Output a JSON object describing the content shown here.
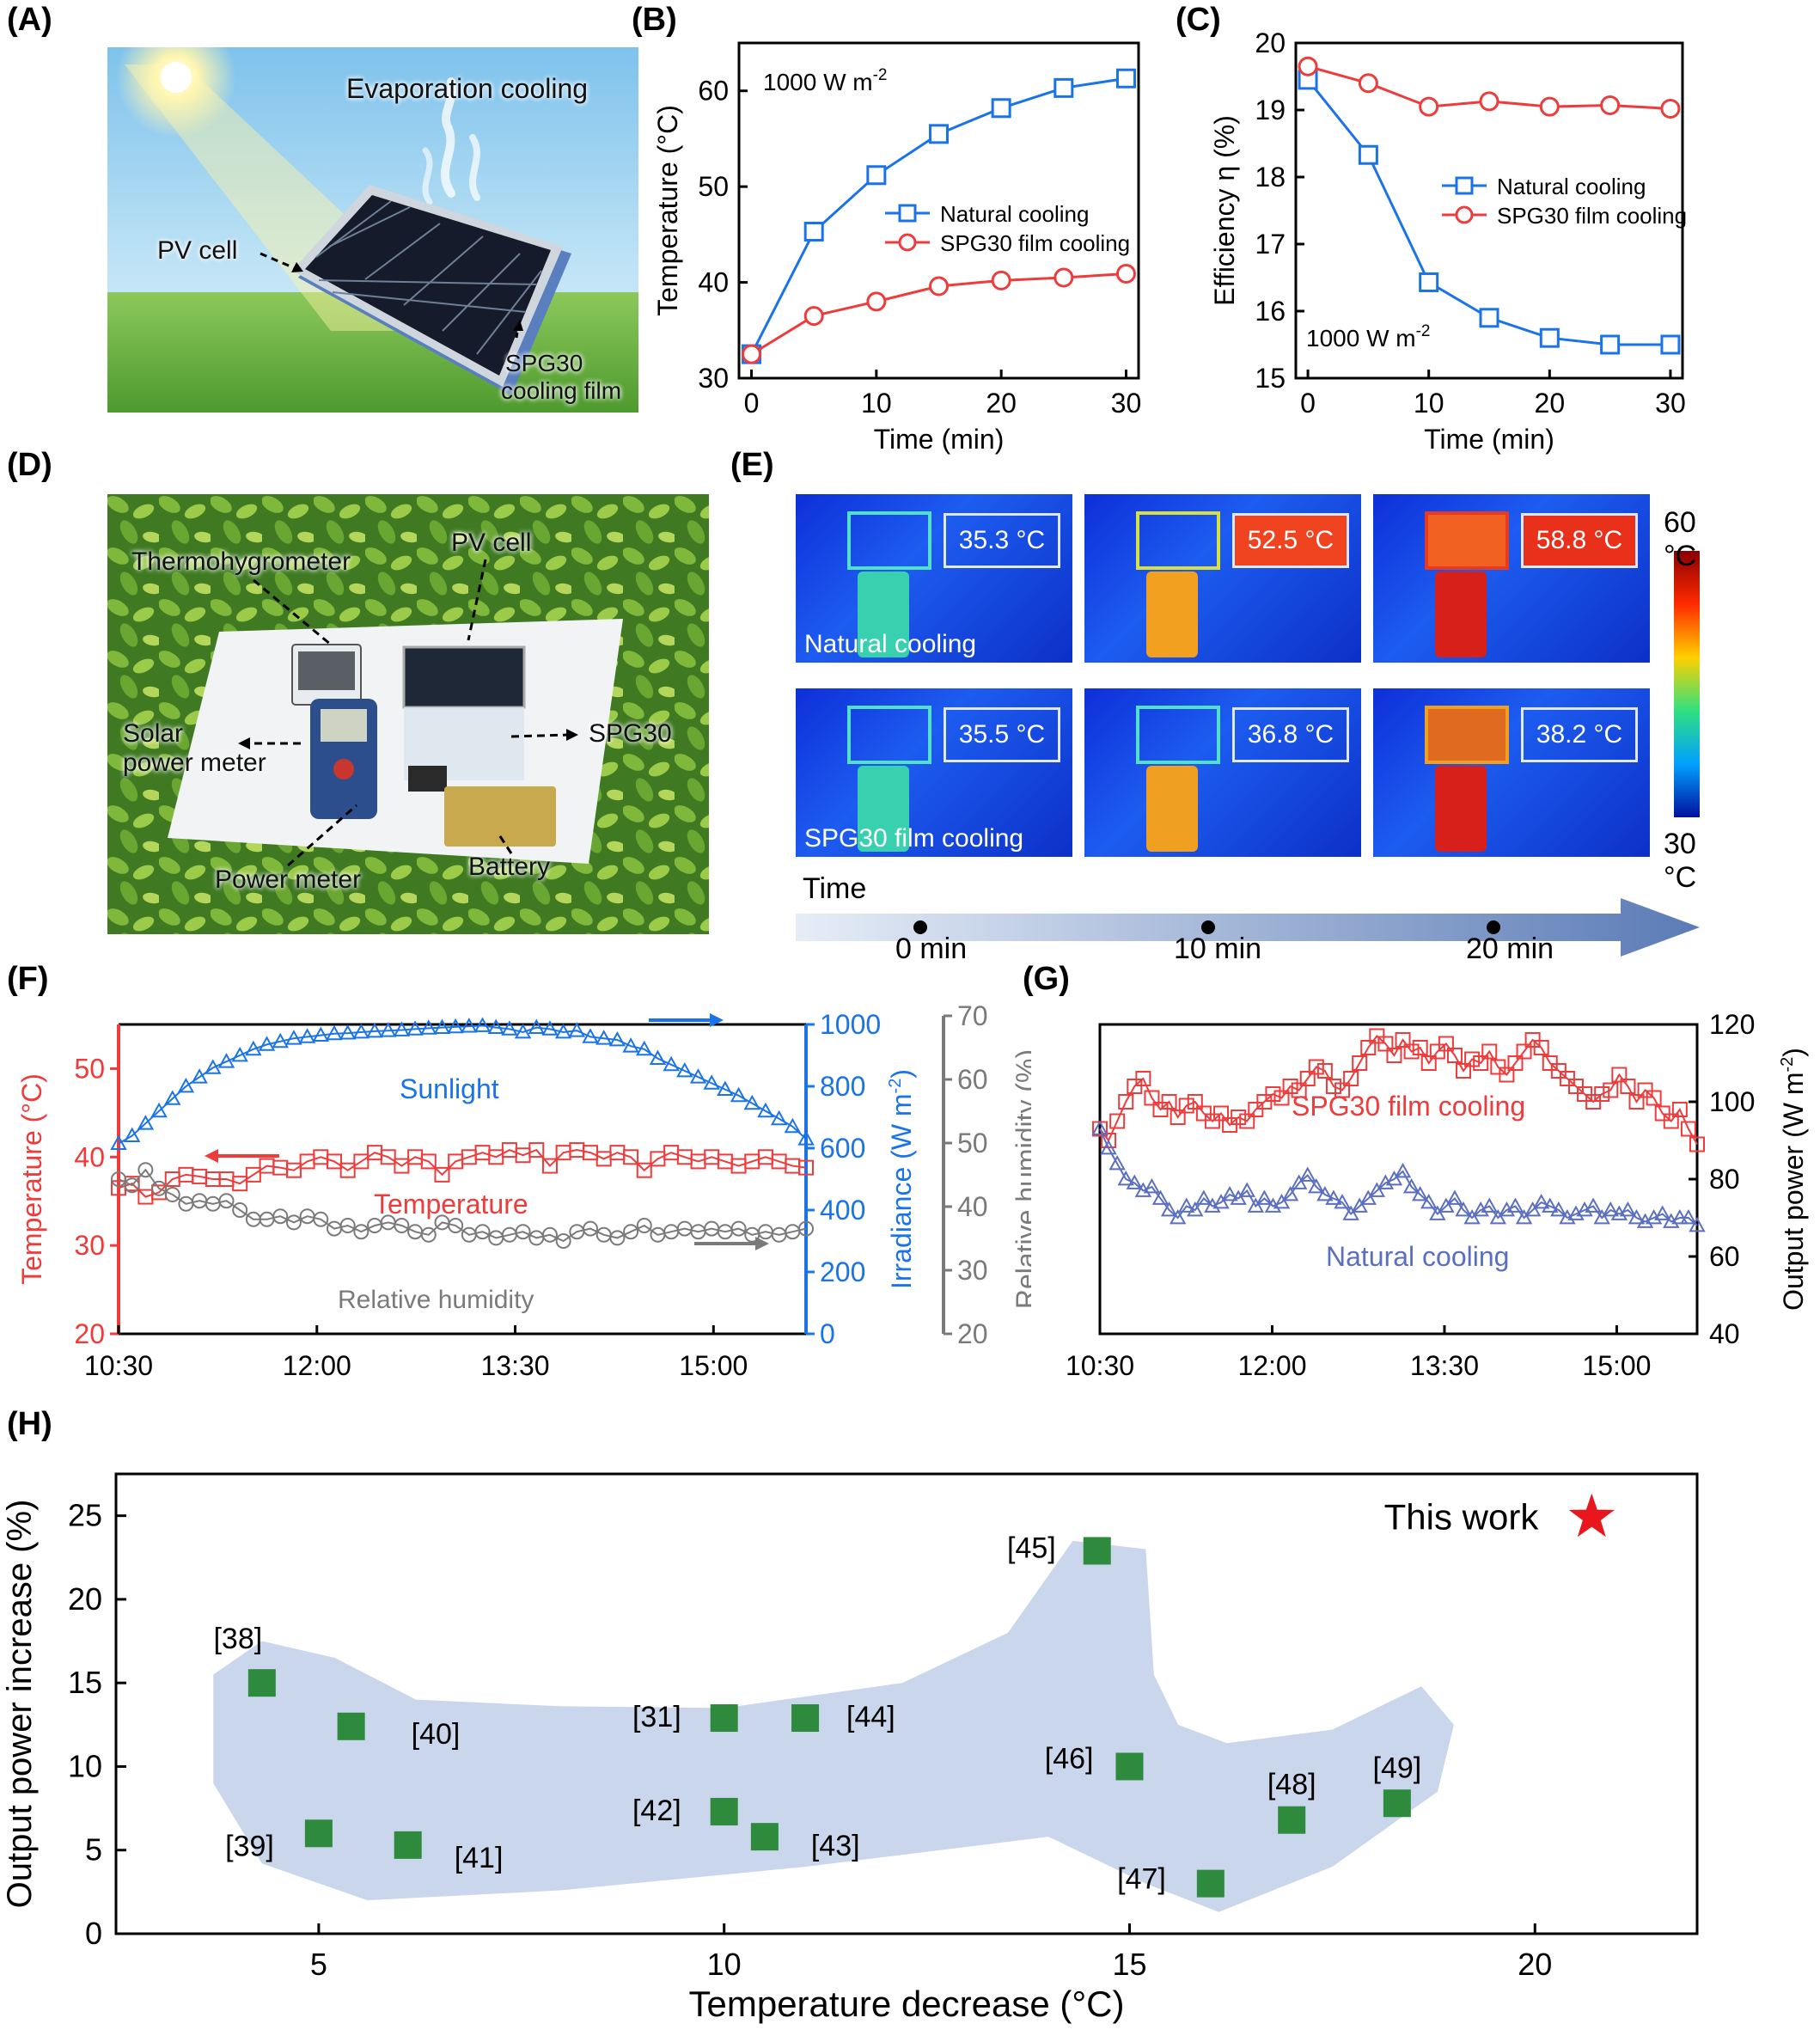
{
  "panels": {
    "A": {
      "label": "(A)",
      "evap": "Evaporation cooling",
      "pv": "PV cell",
      "film_line1": "SPG30",
      "film_line2": "cooling film"
    },
    "B": {
      "label": "(B)",
      "annot": "1000 W m",
      "annot_sup": "-2"
    },
    "C": {
      "label": "(C)",
      "annot": "1000 W m",
      "annot_sup": "-2"
    },
    "D": {
      "label": "(D)",
      "thermo": "Thermohygrometer",
      "pv": "PV cell",
      "solar1": "Solar",
      "solar2": "power meter",
      "spg": "SPG30",
      "power": "Power meter",
      "battery": "Battery"
    },
    "E": {
      "label": "(E)",
      "rows": [
        "Natural cooling",
        "SPG30 film cooling"
      ],
      "temps": [
        [
          "35.3 °C",
          "52.5 °C",
          "58.8 °C"
        ],
        [
          "35.5 °C",
          "36.8 °C",
          "38.2 °C"
        ]
      ],
      "scale_max": "60 °C",
      "scale_min": "30 °C",
      "time_label": "Time",
      "times": [
        "0 min",
        "10 min",
        "20 min"
      ]
    },
    "F": {
      "label": "(F)"
    },
    "G": {
      "label": "(G)"
    },
    "H": {
      "label": "(H)"
    }
  },
  "colors": {
    "blue": "#1a73e8",
    "red": "#ee3b3b",
    "gray": "#7a7a7a",
    "navy": "#5b6fc0",
    "green": "#2e8b3e",
    "star": "#e8161d",
    "region": "#c9d6ec"
  },
  "chart_data": [
    {
      "panel": "B",
      "type": "line",
      "xlabel": "Time (min)",
      "ylabel": "Temperature (°C)",
      "xlim": [
        -1,
        31
      ],
      "ylim": [
        30,
        65
      ],
      "xticks": [
        0,
        10,
        20,
        30
      ],
      "yticks": [
        30,
        40,
        50,
        60
      ],
      "legend": "center-right",
      "x": [
        0,
        5,
        10,
        15,
        20,
        25,
        30
      ],
      "series": [
        {
          "name": "Natural cooling",
          "marker": "square",
          "color": "#1a73e8",
          "values": [
            32.5,
            45.3,
            51.2,
            55.5,
            58.2,
            60.3,
            61.3
          ]
        },
        {
          "name": "SPG30 film cooling",
          "marker": "circle",
          "color": "#ee3b3b",
          "values": [
            32.5,
            36.5,
            38.0,
            39.6,
            40.2,
            40.5,
            40.9
          ]
        }
      ]
    },
    {
      "panel": "C",
      "type": "line",
      "xlabel": "Time (min)",
      "ylabel": "Efficiency η (%)",
      "xlim": [
        -1,
        31
      ],
      "ylim": [
        15,
        20
      ],
      "xticks": [
        0,
        10,
        20,
        30
      ],
      "yticks": [
        15,
        16,
        17,
        18,
        19,
        20
      ],
      "legend": "center-right",
      "x": [
        0,
        5,
        10,
        15,
        20,
        25,
        30
      ],
      "series": [
        {
          "name": "Natural cooling",
          "marker": "square",
          "color": "#1a73e8",
          "values": [
            19.45,
            18.33,
            16.43,
            15.9,
            15.6,
            15.5,
            15.5
          ]
        },
        {
          "name": "SPG30 film cooling",
          "marker": "circle",
          "color": "#ee3b3b",
          "values": [
            19.65,
            19.4,
            19.05,
            19.13,
            19.05,
            19.07,
            19.02
          ]
        }
      ]
    },
    {
      "panel": "F",
      "type": "line",
      "xticks_labels": [
        "10:30",
        "12:00",
        "13:30",
        "15:00"
      ],
      "xlim_hours": [
        10.5,
        15.7
      ],
      "axes": [
        {
          "id": "temp",
          "label": "Temperature (°C)",
          "color": "#ee3b3b",
          "ylim": [
            20,
            55
          ],
          "ticks": [
            20,
            30,
            40,
            50
          ]
        },
        {
          "id": "irr",
          "label": "Irradiance (W m",
          "label_sup": "-2",
          "label_end": ")",
          "color": "#1a73e8",
          "ylim": [
            0,
            1000
          ],
          "ticks": [
            0,
            200,
            400,
            600,
            800,
            1000
          ]
        },
        {
          "id": "rh",
          "label": "Relative humidity (%)",
          "color": "#7a7a7a",
          "ylim": [
            20,
            70
          ],
          "ticks": [
            20,
            30,
            40,
            50,
            60,
            70
          ]
        }
      ],
      "series": [
        {
          "name": "Sunlight",
          "axis": "irr",
          "marker": "triangle",
          "color": "#1a73e8",
          "values": [
            615,
            640,
            680,
            720,
            760,
            800,
            830,
            860,
            880,
            900,
            920,
            935,
            945,
            955,
            960,
            965,
            970,
            972,
            975,
            978,
            980,
            982,
            985,
            988,
            990,
            992,
            994,
            996,
            990,
            985,
            975,
            990,
            985,
            975,
            980,
            960,
            955,
            950,
            930,
            920,
            890,
            870,
            850,
            830,
            810,
            790,
            770,
            745,
            720,
            695,
            670,
            630
          ]
        },
        {
          "name": "Temperature",
          "axis": "temp",
          "marker": "square",
          "color": "#ee3b3b",
          "values": [
            36.5,
            37.0,
            35.5,
            36.0,
            37.5,
            38.0,
            37.8,
            37.5,
            37.5,
            37.0,
            38.0,
            39.0,
            38.8,
            38.5,
            39.5,
            40.0,
            39.5,
            38.5,
            39.5,
            40.5,
            40.0,
            39.0,
            40.0,
            39.5,
            38.0,
            39.5,
            40.0,
            40.5,
            40.0,
            40.8,
            40.2,
            40.8,
            39.0,
            40.5,
            40.8,
            40.5,
            39.8,
            40.5,
            40.0,
            38.5,
            39.8,
            40.5,
            40.0,
            39.5,
            40.0,
            39.5,
            39.0,
            39.5,
            40.0,
            39.5,
            39.0,
            38.8
          ]
        },
        {
          "name": "Relative humidity",
          "axis": "rh",
          "marker": "circle",
          "color": "#7a7a7a",
          "values": [
            45.0,
            44.0,
            46.5,
            43.5,
            42.5,
            41.0,
            41.5,
            41.0,
            41.5,
            40.0,
            38.5,
            38.5,
            39.0,
            38.0,
            39.0,
            38.5,
            37.0,
            37.5,
            36.5,
            37.5,
            38.0,
            37.5,
            36.5,
            36.0,
            38.0,
            37.5,
            36.0,
            36.5,
            35.5,
            36.0,
            36.5,
            35.5,
            36.0,
            35.0,
            36.5,
            37.0,
            36.0,
            35.5,
            36.5,
            37.5,
            36.0,
            36.5,
            37.0,
            36.5,
            37.0,
            36.5,
            37.0,
            36.0,
            36.5,
            36.0,
            36.5,
            37.0
          ]
        }
      ],
      "annotations": [
        "Sunlight",
        "Temperature",
        "Relative humidity"
      ]
    },
    {
      "panel": "G",
      "type": "line",
      "ylabel": "Output power (W m",
      "ylabel_sup": "-2",
      "ylabel_end": ")",
      "xticks_labels": [
        "10:30",
        "12:00",
        "13:30",
        "15:00"
      ],
      "xlim_hours": [
        10.5,
        15.7
      ],
      "ylim": [
        40,
        120
      ],
      "yticks": [
        40,
        60,
        80,
        100,
        120
      ],
      "series": [
        {
          "name": "SPG30 film cooling",
          "marker": "square",
          "color": "#ee3b3b",
          "values": [
            93,
            90,
            95,
            100,
            104,
            106,
            101,
            98,
            100,
            96,
            99,
            100,
            97,
            95,
            97,
            94,
            96,
            95,
            98,
            100,
            102,
            101,
            104,
            103,
            106,
            109,
            108,
            104,
            103,
            106,
            110,
            114,
            117,
            115,
            112,
            116,
            113,
            114,
            110,
            113,
            115,
            112,
            108,
            111,
            110,
            113,
            109,
            107,
            110,
            113,
            116,
            114,
            110,
            108,
            106,
            104,
            102,
            100,
            102,
            103,
            107,
            104,
            100,
            103,
            101,
            97,
            95,
            98,
            93,
            89
          ]
        },
        {
          "name": "Natural cooling",
          "marker": "triangle",
          "color": "#5b6fc0",
          "values": [
            93,
            88,
            84,
            80,
            79,
            77,
            78,
            75,
            72,
            70,
            73,
            72,
            75,
            73,
            74,
            76,
            75,
            77,
            73,
            75,
            73,
            74,
            76,
            79,
            81,
            78,
            76,
            75,
            74,
            71,
            73,
            75,
            77,
            79,
            80,
            82,
            78,
            76,
            74,
            71,
            73,
            75,
            72,
            70,
            72,
            73,
            70,
            72,
            73,
            70,
            72,
            74,
            73,
            72,
            70,
            71,
            72,
            73,
            70,
            72,
            71,
            72,
            70,
            69,
            70,
            71,
            69,
            70,
            70,
            68
          ]
        }
      ],
      "annotations": [
        "SPG30 film cooling",
        "Natural cooling"
      ]
    },
    {
      "panel": "H",
      "type": "scatter",
      "xlabel": "Temperature decrease (°C)",
      "ylabel": "Output power increase (%)",
      "xlim": [
        2.5,
        22
      ],
      "ylim": [
        0,
        27.5
      ],
      "xticks": [
        5,
        10,
        15,
        20
      ],
      "yticks": [
        0,
        5,
        10,
        15,
        20,
        25
      ],
      "points": [
        {
          "label": "[38]",
          "x": 4.3,
          "y": 15.0
        },
        {
          "label": "[39]",
          "x": 5.0,
          "y": 6.0
        },
        {
          "label": "[40]",
          "x": 5.4,
          "y": 12.4
        },
        {
          "label": "[41]",
          "x": 6.1,
          "y": 5.3
        },
        {
          "label": "[31]",
          "x": 10.0,
          "y": 12.9
        },
        {
          "label": "[42]",
          "x": 10.0,
          "y": 7.3
        },
        {
          "label": "[43]",
          "x": 10.5,
          "y": 5.8
        },
        {
          "label": "[44]",
          "x": 11.0,
          "y": 12.9
        },
        {
          "label": "[45]",
          "x": 14.6,
          "y": 22.9
        },
        {
          "label": "[46]",
          "x": 15.0,
          "y": 10.0
        },
        {
          "label": "[47]",
          "x": 16.0,
          "y": 3.0
        },
        {
          "label": "[48]",
          "x": 17.0,
          "y": 6.8
        },
        {
          "label": "[49]",
          "x": 18.3,
          "y": 7.8
        }
      ],
      "highlight": {
        "label": "This work",
        "x": 20.7,
        "y": 24.9
      }
    }
  ]
}
